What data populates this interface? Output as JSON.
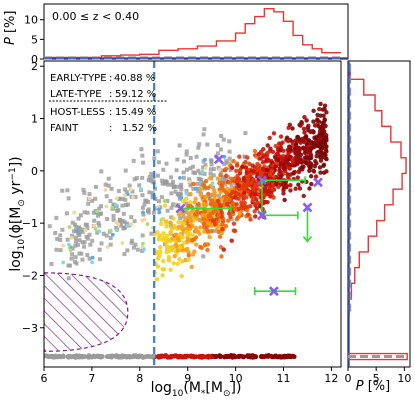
{
  "chart_data": [
    {
      "type": "scatter",
      "panel": "main",
      "xlabel": "log$_{10}$(M$_*$[M$_\\odot$])",
      "ylabel": "log$_{10}$(ϕ[M$_\\odot$ yr$^{-1}$])",
      "xlabel_parts": [
        "log",
        "10",
        "(M",
        "*",
        "[M",
        "⊙",
        "])"
      ],
      "ylabel_parts": [
        "log",
        "10",
        "(ϕ[M",
        "⊙",
        " yr",
        "−1",
        "])"
      ],
      "xlim": [
        6,
        12.2
      ],
      "ylim": [
        -3.75,
        2.1
      ],
      "xticks": [
        6,
        7,
        8,
        9,
        10,
        11,
        12
      ],
      "yticks": [
        -3,
        -2,
        -1,
        0,
        1,
        2
      ],
      "ytick_labels": [
        "−3",
        "−2",
        "−1",
        "0",
        "1",
        "2"
      ],
      "vline_x": 8.3,
      "host_less_row_y": -3.55,
      "hatched_region": {
        "x0": 6.0,
        "x1": 7.75,
        "ytop": -1.95,
        "ybottom": -3.45
      },
      "legend_placement": "top-left",
      "legend": [
        {
          "label": "EARLY-TYPE",
          "sep": ":",
          "value": "40.88 %",
          "underline": false
        },
        {
          "label": "LATE-TYPE",
          "sep": ":",
          "value": "59.12 %",
          "underline": true
        },
        {
          "label": "HOST-LESS",
          "sep": ":",
          "value": "15.49 %",
          "underline": false
        },
        {
          "label": "FAINT",
          "sep": ":",
          "value": "1.52 %",
          "underline": false
        }
      ],
      "highlighted_points": [
        {
          "x": 10.55,
          "y": -0.18,
          "xerr": [
            0.0,
            0.9
          ],
          "yerr": [
            0,
            0
          ]
        },
        {
          "x": 10.55,
          "y": -0.85,
          "xerr": [
            0.0,
            0.75
          ],
          "yerr": [
            0.7,
            0.0
          ]
        },
        {
          "x": 11.5,
          "y": -0.7,
          "xerr": [
            0.0,
            0.0
          ],
          "yerr": [
            0.0,
            0.65
          ]
        },
        {
          "x": 8.85,
          "y": -0.72,
          "xerr": [
            0.0,
            1.05
          ],
          "yerr": [
            0,
            0
          ]
        },
        {
          "x": 10.8,
          "y": -2.3,
          "xerr": [
            0.4,
            0.45
          ],
          "yerr": [
            0,
            0
          ]
        },
        {
          "x": 9.65,
          "y": 0.22,
          "xerr": [
            0,
            0
          ],
          "yerr": [
            0,
            0
          ]
        },
        {
          "x": 11.72,
          "y": -0.22,
          "xerr": [
            0,
            0
          ],
          "yerr": [
            0,
            0
          ]
        }
      ],
      "colors": {
        "early": "#cc1a0a",
        "late_low": "#f2c21a",
        "grey": "#9a9a9a",
        "vline": "#3a7fd0",
        "hatch": "#7a1f8a",
        "error": "#33dd33",
        "marker": "#8a5cf0",
        "darkred": "#8b0000"
      }
    },
    {
      "type": "line",
      "panel": "top-histogram",
      "ylabel": "P [%]",
      "ylabel_parts": [
        "P",
        " [%]"
      ],
      "annotation": "0.00 ≤ z < 0.40",
      "yticks": [
        0,
        5,
        10
      ],
      "ylim": [
        0,
        14
      ],
      "x": [
        6.0,
        6.8,
        7.2,
        7.6,
        8.0,
        8.4,
        8.8,
        9.2,
        9.6,
        10.0,
        10.2,
        10.4,
        10.6,
        10.8,
        11.0,
        11.2,
        11.4,
        11.6,
        11.8,
        12.2
      ],
      "series": [
        {
          "name": "",
          "values": [
            0.4,
            0.4,
            0.8,
            1.0,
            1.2,
            2.2,
            2.6,
            3.3,
            4.6,
            6.6,
            9.0,
            10.8,
            12.8,
            12.0,
            9.6,
            6.0,
            3.6,
            2.6,
            1.6,
            0.8
          ],
          "color": "#ee3333"
        },
        {
          "name": "",
          "values": [
            0.3,
            0.3,
            0.3,
            0.3,
            0.3,
            0.3,
            0.3,
            0.3,
            0.3,
            0.3,
            0.3,
            0.3,
            0.3,
            0.3,
            0.3,
            0.3,
            0.3,
            0.3,
            0.3,
            0.3
          ],
          "color": "#999999"
        }
      ]
    },
    {
      "type": "line",
      "panel": "right-histogram",
      "xlabel": "P [%]",
      "xlabel_parts": [
        "P",
        " [%]"
      ],
      "xticks": [
        0,
        5,
        10
      ],
      "xlim": [
        0,
        11
      ],
      "y": [
        1.9,
        1.6,
        1.3,
        1.0,
        0.7,
        0.4,
        0.1,
        -0.2,
        -0.5,
        -0.8,
        -1.1,
        -1.4,
        -1.7,
        -2.0,
        -2.3,
        -2.6
      ],
      "series": [
        {
          "name": "",
          "values": [
            0.4,
            2.8,
            4.8,
            6.0,
            7.6,
            9.4,
            10.3,
            9.6,
            8.0,
            6.5,
            5.1,
            3.6,
            2.0,
            1.2,
            0.6,
            0.2
          ],
          "color": "#ee3333"
        },
        {
          "name": "",
          "values": [
            0.3,
            0.3,
            0.3,
            0.3,
            0.3,
            0.3,
            0.3,
            0.3,
            0.3,
            0.3,
            0.3,
            0.3,
            0.3,
            0.3,
            0.3,
            0.3
          ],
          "color": "#999999"
        }
      ],
      "hostless_bar_y": -3.55,
      "hostless_bar_value": 10.5
    }
  ]
}
